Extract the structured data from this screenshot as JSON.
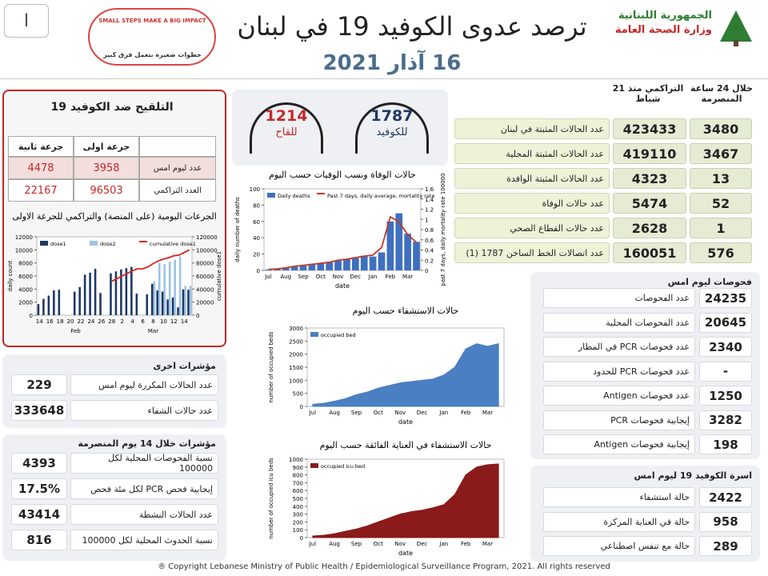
{
  "header": {
    "page": "I",
    "title": "ترصد عدوى الكوفيد 19 في لبنان",
    "date": "16 آذار 2021",
    "ministry": [
      "الجمهورية اللبنانية",
      "وزارة الصحة العامة"
    ],
    "campaign": [
      "SMALL STEPS MAKE A BIG IMPACT",
      "خطوات صغيرة بتعمل فرق كبير"
    ]
  },
  "hotlines": [
    {
      "number": 1787,
      "label": "للكوفيد"
    },
    {
      "number": 1214,
      "label": "للقاح"
    }
  ],
  "main": {
    "headers": [
      "خلال 24 ساعة المنصرمة",
      "التراكمي منذ 21 شباط"
    ],
    "rows": [
      [
        "عدد الحالات المثبتة في لبنان",
        423433,
        3480
      ],
      [
        "عدد الحالات المثبتة المحلية",
        419110,
        3467
      ],
      [
        "عدد الحالات المثبتة الوافدة",
        4323,
        13
      ],
      [
        "عدد حالات الوفاة",
        5474,
        52
      ],
      [
        "عدد حالات القطاع الصحي",
        2628,
        1
      ],
      [
        "عدد اتصالات الخط الساخن 1787 (1)",
        160051,
        576
      ]
    ]
  },
  "tests": {
    "title": "فحوصات ليوم امس",
    "rows": [
      [
        "عدد الفحوصات",
        24235
      ],
      [
        "عدد الفحوصات المحلية",
        20645
      ],
      [
        "عدد فحوصات PCR في المطار",
        2340
      ],
      [
        "عدد فحوصات PCR للحدود",
        "-"
      ],
      [
        "عدد فحوصات Antigen",
        1250
      ],
      [
        "إيجابية فحوصات PCR",
        3282
      ],
      [
        "إيجابية فحوصات Antigen",
        198
      ]
    ]
  },
  "beds": {
    "title": "اسرة الكوفيد 19 ليوم امس",
    "rows": [
      [
        "حالة استشفاء",
        2422
      ],
      [
        "حالة في العناية المركزة",
        958
      ],
      [
        "حالة مع تنفس اصطناعي",
        289
      ]
    ]
  },
  "vaccination": {
    "title": "التلقيح ضد الكوفيد 19",
    "headers": [
      "جرعة اولى",
      "جرعة ثانية"
    ],
    "rows": [
      [
        "عدد ليوم امس",
        3958,
        4478
      ],
      [
        "العدد التراكمي",
        96503,
        22167
      ]
    ]
  },
  "other": {
    "title": "مؤشرات اخرى",
    "rows": [
      [
        "عدد الحالات المكررة ليوم امس",
        229
      ],
      [
        "عدد حالات الشفاء",
        333648
      ]
    ]
  },
  "last14": {
    "title": "مؤشرات خلال 14 يوم المنصرمة",
    "rows": [
      [
        "نسبة الفحوصات المحلية لكل 100000",
        4393
      ],
      [
        "إيجابية فحص PCR لكل مئة فحص",
        {
          "value": 17.5,
          "label": "17.5%"
        }
      ],
      [
        "عدد الحالات النشطة",
        43414
      ],
      [
        "نسبة الحدوث المحلية لكل 100000",
        816
      ]
    ]
  },
  "charts": [
    {
      "type": "bar",
      "title": "الجرعات اليومية (على المنصة) والتراكمي للجرعة الاولى",
      "ylabel": "daily count",
      "y2label": "cumulative dose1",
      "categories": [
        "14",
        null,
        "16",
        null,
        "18",
        null,
        "20",
        null,
        "22",
        null,
        "24",
        null,
        "26",
        null,
        "28",
        null,
        "2",
        null,
        "4",
        null,
        "6",
        null,
        "8",
        null,
        "10",
        null,
        "12",
        null,
        "14",
        null
      ],
      "x_groups": [
        "Feb",
        "Mar"
      ],
      "ylim": [
        0,
        12000
      ],
      "yticks": [
        0,
        2000,
        4000,
        6000,
        8000,
        10000,
        12000
      ],
      "y2lim": [
        0,
        120000
      ],
      "y2ticks": [
        0,
        20000,
        40000,
        60000,
        80000,
        100000,
        120000
      ],
      "series": [
        {
          "name": "dose1",
          "type": "bar",
          "color": "#1f3864",
          "values": [
            1700,
            2500,
            3000,
            3800,
            3900,
            0,
            0,
            3600,
            4300,
            6200,
            6500,
            7100,
            3400,
            0,
            6400,
            6700,
            7000,
            7200,
            7400,
            3300,
            0,
            3200,
            4800,
            3800,
            3600,
            2400,
            2700,
            1200,
            3958,
            3900
          ]
        },
        {
          "name": "dose2",
          "type": "bar",
          "color": "#9dc3e6",
          "values": [
            0,
            0,
            0,
            0,
            0,
            0,
            0,
            0,
            0,
            0,
            0,
            0,
            0,
            0,
            0,
            0,
            0,
            0,
            0,
            0,
            0,
            0,
            5200,
            8000,
            7800,
            8200,
            8500,
            9000,
            4478,
            4500
          ]
        },
        {
          "name": "cumulative dose1",
          "type": "line",
          "axis": "y2",
          "color": "#e02020",
          "values": [
            null,
            null,
            null,
            null,
            null,
            null,
            null,
            null,
            null,
            null,
            null,
            null,
            null,
            null,
            52000,
            56000,
            60000,
            64000,
            68000,
            71000,
            71000,
            74000,
            79000,
            83000,
            86000,
            88000,
            91000,
            92000,
            96000,
            100000
          ]
        }
      ]
    },
    {
      "type": "bar",
      "title": "حالات الوفاة ونسب الوفيات حسب اليوم",
      "xlabel": "date",
      "ylabel": "daily number of deaths",
      "y2label": "past 7 days, daily mortality rate 100000",
      "categories": [
        "Jul",
        null,
        "Aug",
        null,
        "Sep",
        null,
        "Oct",
        null,
        "Nov",
        null,
        "Dec",
        null,
        "Jan",
        null,
        "Feb",
        null,
        "Mar",
        null
      ],
      "ylim": [
        0,
        100
      ],
      "yticks": [
        0,
        20,
        40,
        60,
        80,
        100
      ],
      "y2lim": [
        0,
        1.6
      ],
      "y2ticks": [
        0,
        0.2,
        0.4,
        0.6,
        0.8,
        1,
        1.2,
        1.4,
        1.6
      ],
      "series": [
        {
          "name": "Daily deaths",
          "type": "bar",
          "color": "#3f6fc0",
          "values": [
            1,
            2,
            3,
            5,
            6,
            8,
            9,
            10,
            12,
            14,
            15,
            18,
            17,
            22,
            60,
            70,
            45,
            35
          ]
        },
        {
          "name": "Past 7 days, daily average, mortality rate",
          "type": "line",
          "axis": "y2",
          "color": "#c0392b",
          "values": [
            0.02,
            0.03,
            0.05,
            0.08,
            0.1,
            0.12,
            0.14,
            0.16,
            0.2,
            0.22,
            0.25,
            0.28,
            0.3,
            0.45,
            1.05,
            0.95,
            0.7,
            0.55
          ]
        }
      ]
    },
    {
      "type": "area",
      "title": "حالات الاستشفاء حسب اليوم",
      "xlabel": "date",
      "ylabel": "number of occupied beds",
      "categories": [
        "Jul",
        null,
        "Aug",
        null,
        "Sep",
        null,
        "Oct",
        null,
        "Nov",
        null,
        "Dec",
        null,
        "Jan",
        null,
        "Feb",
        null,
        "Mar",
        null
      ],
      "ylim": [
        0,
        3000
      ],
      "yticks": [
        0,
        500,
        1000,
        1500,
        2000,
        2500,
        3000
      ],
      "series": [
        {
          "name": "occupied bed",
          "color": "#4a7fc1",
          "values": [
            80,
            120,
            200,
            300,
            450,
            550,
            700,
            800,
            900,
            950,
            1000,
            1050,
            1200,
            1500,
            2200,
            2400,
            2300,
            2400
          ]
        }
      ]
    },
    {
      "type": "area",
      "title": "حالات الاستشفاء في العناية الفائقة حسب اليوم",
      "xlabel": "date",
      "ylabel": "number of occupied icu beds",
      "categories": [
        "Jul",
        null,
        "Aug",
        null,
        "Sep",
        null,
        "Oct",
        null,
        "Nov",
        null,
        "Dec",
        null,
        "Jan",
        null,
        "Feb",
        null,
        "Mar",
        null
      ],
      "ylim": [
        0,
        1000
      ],
      "yticks": [
        0,
        100,
        200,
        300,
        400,
        500,
        600,
        700,
        800,
        900,
        1000
      ],
      "series": [
        {
          "name": "occupied icu bed",
          "color": "#8b1a1a",
          "values": [
            20,
            30,
            50,
            80,
            110,
            150,
            200,
            250,
            300,
            330,
            350,
            380,
            420,
            550,
            800,
            900,
            930,
            940
          ]
        }
      ]
    }
  ],
  "footer": "® Copyright Lebanese Ministry of Public Health / Epidemiological Surveillance Program, 2021. All rights reserved"
}
